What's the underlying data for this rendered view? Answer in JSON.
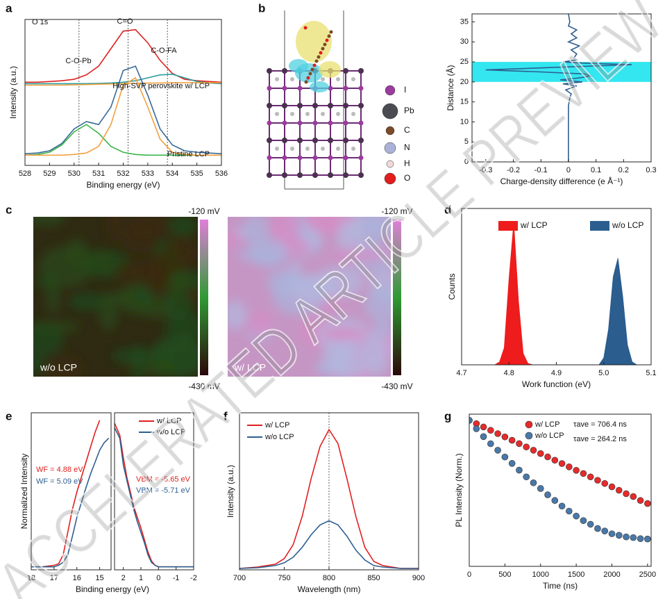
{
  "panel_labels": [
    "a",
    "b",
    "c",
    "d",
    "e",
    "f",
    "g"
  ],
  "watermark": "ACCELERATED ARTICLE PREVIEW",
  "atoms": [
    {
      "label": "I",
      "color": "#9b3c9e"
    },
    {
      "label": "Pb",
      "color": "#4b4b52"
    },
    {
      "label": "C",
      "color": "#7b4a28"
    },
    {
      "label": "N",
      "color": "#aab2d8"
    },
    {
      "label": "H",
      "color": "#f2dada"
    },
    {
      "label": "O",
      "color": "#e11d1d"
    }
  ],
  "maps": [
    {
      "label": "w/o LCP",
      "top": "-120 mV",
      "bottom": "-430 mV"
    },
    {
      "label": "w/ LCP",
      "top": "-120 mV",
      "bottom": "-430 mV"
    }
  ],
  "chart_data": [
    {
      "type": "line",
      "xlabel": "Binding energy (eV)",
      "ylabel": "Intensity (a.u.)",
      "x": [
        528,
        528.5,
        529,
        529.5,
        530,
        530.5,
        531,
        531.5,
        532,
        532.5,
        533,
        533.5,
        534,
        534.5,
        535,
        535.5,
        536
      ],
      "xlim": [
        528,
        536
      ],
      "xticks": [
        528,
        529,
        530,
        531,
        532,
        533,
        534,
        535,
        536
      ],
      "ylim": [
        0,
        100
      ],
      "guide_lines": [
        530.2,
        532.2,
        533.8
      ],
      "series": [
        {
          "color": "#e01f1f",
          "values": [
            57,
            57,
            57.5,
            58,
            59,
            62,
            68,
            80,
            92,
            93,
            84,
            72,
            63,
            59,
            58,
            57.5,
            57
          ]
        },
        {
          "color": "#2a9d9d",
          "values": [
            56,
            56,
            56,
            56,
            56,
            56,
            56.2,
            56.5,
            57,
            58,
            60,
            62,
            62.5,
            60,
            57.5,
            56.5,
            56
          ]
        },
        {
          "color": "#f0a040",
          "values": [
            55,
            55,
            55,
            55,
            55.2,
            55.4,
            55.6,
            55.8,
            56,
            56.2,
            56.4,
            56.5,
            56.6,
            56.6,
            56.6,
            56.6,
            56.6
          ]
        },
        {
          "color": "#3a6a96",
          "values": [
            8,
            8.5,
            10,
            15,
            25,
            30,
            28,
            40,
            65,
            68,
            48,
            25,
            14,
            10,
            9,
            8.5,
            8
          ]
        },
        {
          "color": "#3ab54a",
          "values": [
            7,
            7.5,
            9,
            14,
            23,
            28,
            22,
            13,
            9,
            7.5,
            7,
            7,
            7,
            7,
            7,
            7,
            7
          ]
        },
        {
          "color": "#f0a040",
          "values": [
            7,
            7,
            7,
            7,
            7.5,
            8.5,
            13,
            28,
            55,
            60,
            40,
            18,
            9,
            7.5,
            7,
            7,
            7
          ]
        }
      ],
      "annotations": [
        {
          "text": "O 1s"
        },
        {
          "text": "C=O"
        },
        {
          "text": "C-O-Pb"
        },
        {
          "text": "C-O-FA"
        },
        {
          "text": "High-SVP perovskite w/ LCP"
        },
        {
          "text": "Pristine LCP"
        }
      ]
    },
    {
      "type": "line",
      "xlabel": "Charge-density difference (e Å⁻¹)",
      "ylabel": "Distance (Å)",
      "y": [
        0,
        2,
        4,
        6,
        8,
        10,
        12,
        14,
        16,
        17,
        18,
        19,
        19.5,
        20,
        20.5,
        21,
        21.5,
        22,
        22.5,
        23,
        23.5,
        24,
        24.3,
        24.7,
        25,
        25.5,
        26,
        27,
        28,
        29,
        30,
        31,
        32,
        33,
        34,
        35,
        37
      ],
      "xlim": [
        -0.35,
        0.3
      ],
      "xticks": [
        -0.3,
        -0.2,
        -0.1,
        0,
        0.1,
        0.2,
        0.3
      ],
      "ylim": [
        0,
        37
      ],
      "yticks": [
        0,
        5,
        10,
        15,
        20,
        25,
        30,
        35
      ],
      "band": [
        20,
        25
      ],
      "band_color": "#33e6f0",
      "series": [
        {
          "color": "#2e5f8f",
          "values": [
            0,
            0,
            0,
            0,
            0,
            0,
            0,
            0,
            0.005,
            0.01,
            -0.01,
            0.03,
            -0.02,
            0.05,
            -0.03,
            0.04,
            0.08,
            0.06,
            -0.1,
            -0.3,
            -0.1,
            0.1,
            0.23,
            0.05,
            -0.02,
            0.03,
            0.02,
            0.03,
            0.01,
            0.04,
            0,
            0.03,
            0.01,
            0.03,
            0,
            0.005,
            0
          ]
        }
      ]
    },
    {
      "type": "area",
      "xlabel": "Work function (eV)",
      "ylabel": "Counts",
      "x": [
        4.76,
        4.77,
        4.78,
        4.79,
        4.8,
        4.81,
        4.82,
        4.83,
        4.84,
        4.85,
        4.86,
        4.87,
        4.88,
        4.89,
        4.9,
        4.91,
        4.92,
        4.93,
        4.94,
        4.95,
        4.96,
        4.97,
        4.98,
        4.99,
        5,
        5.01,
        5.02,
        5.03,
        5.04,
        5.05,
        5.06,
        5.07
      ],
      "xlim": [
        4.7,
        5.1
      ],
      "xticks": [
        4.7,
        4.8,
        4.9,
        {
          "value": 5,
          "label": "5.0"
        },
        5.1
      ],
      "ylim": [
        0,
        110
      ],
      "series": [
        {
          "name": "w/ LCP",
          "color": "#ee1c1c",
          "values": [
            0,
            0,
            2,
            12,
            60,
            100,
            45,
            8,
            1,
            0,
            0,
            0,
            0,
            0,
            0,
            0,
            0,
            0,
            0,
            0,
            0,
            0,
            0,
            0,
            0,
            0,
            0,
            0,
            0,
            0,
            0,
            0
          ]
        },
        {
          "name": "w/o LCP",
          "color": "#2b5d8e",
          "values": [
            0,
            0,
            0,
            0,
            0,
            0,
            0,
            0,
            0,
            0,
            0,
            0,
            0,
            0,
            0,
            0,
            0,
            0,
            0,
            0,
            0,
            0,
            0,
            0,
            5,
            25,
            62,
            75,
            48,
            14,
            2,
            0
          ]
        }
      ]
    },
    {
      "type": "line",
      "xlabel": "Binding energy (eV)",
      "ylabel": "Normalized Intensity",
      "x": [
        18,
        17.5,
        17,
        16.8,
        16.6,
        16.4,
        16.2,
        16,
        15.8,
        15.6,
        15.4,
        15.2,
        15,
        14.8,
        14.6
      ],
      "xlim": [
        18,
        14.5
      ],
      "xticks": [
        18,
        17,
        16,
        15
      ],
      "ylim": [
        0,
        105
      ],
      "series": [
        {
          "color": "#e01f1f",
          "values": [
            2,
            2,
            3,
            4,
            10,
            25,
            40,
            52,
            62,
            72,
            82,
            92,
            100,
            null,
            null
          ]
        },
        {
          "color": "#2e5f8f",
          "values": [
            2,
            2,
            2,
            3,
            5,
            10,
            22,
            35,
            45,
            55,
            64,
            72,
            80,
            85,
            88
          ]
        }
      ],
      "annotations": [
        {
          "text": "WF = 4.88 eV",
          "color": "#e01f1f"
        },
        {
          "text": "WF = 5.09 eV",
          "color": "#2e5f8f"
        }
      ]
    },
    {
      "type": "line",
      "x": [
        2.5,
        2.2,
        2,
        1.8,
        1.6,
        1.4,
        1.2,
        1,
        0.8,
        0.6,
        0.4,
        0.2,
        0,
        -0.5,
        -1,
        -1.5,
        -2
      ],
      "xlim": [
        2.5,
        -2
      ],
      "xticks": [
        2,
        1,
        0,
        -1,
        -2
      ],
      "ylim": [
        0,
        105
      ],
      "series": [
        {
          "name": "w/ LCP",
          "color": "#e01f1f",
          "values": [
            98,
            90,
            75,
            62,
            52,
            42,
            35,
            28,
            20,
            12,
            6,
            3,
            2,
            2,
            2,
            2,
            2
          ]
        },
        {
          "name": "w/o LCP",
          "color": "#2e5f8f",
          "values": [
            95,
            88,
            70,
            60,
            50,
            40,
            32,
            25,
            18,
            10,
            5,
            3,
            2,
            2,
            2,
            2,
            2
          ]
        }
      ],
      "annotations": [
        {
          "text": "VBM = -5.65 eV",
          "color": "#e01f1f"
        },
        {
          "text": "VBM = -5.71 eV",
          "color": "#2e5f8f"
        }
      ]
    },
    {
      "type": "line",
      "xlabel": "Wavelength (nm)",
      "ylabel": "Intensity (a.u.)",
      "x": [
        700,
        720,
        740,
        750,
        760,
        770,
        780,
        790,
        800,
        810,
        820,
        830,
        840,
        850,
        860,
        880,
        900
      ],
      "xlim": [
        700,
        900
      ],
      "xticks": [
        700,
        750,
        800,
        850,
        900
      ],
      "ylim": [
        0,
        112
      ],
      "guide_lines": [
        800
      ],
      "series": [
        {
          "name": "w/ LCP",
          "color": "#e01f1f",
          "values": [
            1,
            2,
            4,
            8,
            18,
            38,
            65,
            88,
            100,
            90,
            65,
            38,
            16,
            6,
            3,
            1,
            1
          ]
        },
        {
          "name": "w/o LCP",
          "color": "#2e5f8f",
          "values": [
            1,
            1.5,
            3,
            5,
            9,
            16,
            25,
            32,
            35,
            32,
            24,
            14,
            7,
            3,
            2,
            1,
            1
          ]
        }
      ]
    },
    {
      "type": "scatter",
      "xlabel": "Time (ns)",
      "ylabel": "PL Intensity (Norm.)",
      "ylog": true,
      "x": [
        0,
        100,
        200,
        300,
        400,
        500,
        600,
        700,
        800,
        900,
        1000,
        1100,
        1200,
        1300,
        1400,
        1500,
        1600,
        1700,
        1800,
        1900,
        2000,
        2100,
        2200,
        2300,
        2400,
        2500
      ],
      "xlim": [
        0,
        2550
      ],
      "xticks": [
        0,
        500,
        1000,
        1500,
        2000,
        2500
      ],
      "ylim": [
        0.002,
        1.3
      ],
      "series": [
        {
          "name": "w/ LCP",
          "color": "#e52b2b",
          "values": [
            1,
            0.868,
            0.753,
            0.654,
            0.568,
            0.493,
            0.428,
            0.371,
            0.322,
            0.28,
            0.243,
            0.211,
            0.183,
            0.159,
            0.138,
            0.119,
            0.104,
            0.09,
            0.078,
            0.068,
            0.059,
            0.051,
            0.044,
            0.039,
            0.033,
            0.029
          ]
        },
        {
          "name": "w/o LCP",
          "color": "#4a78a8",
          "values": [
            1,
            0.7,
            0.5,
            0.37,
            0.28,
            0.21,
            0.16,
            0.12,
            0.09,
            0.07,
            0.055,
            0.042,
            0.033,
            0.026,
            0.021,
            0.017,
            0.014,
            0.012,
            0.01,
            0.009,
            0.008,
            0.0075,
            0.007,
            0.0068,
            0.0065,
            0.0064
          ]
        }
      ],
      "annotations": [
        {
          "text": "τave = 706.4 ns"
        },
        {
          "text": "τave = 264.2 ns"
        }
      ]
    }
  ]
}
